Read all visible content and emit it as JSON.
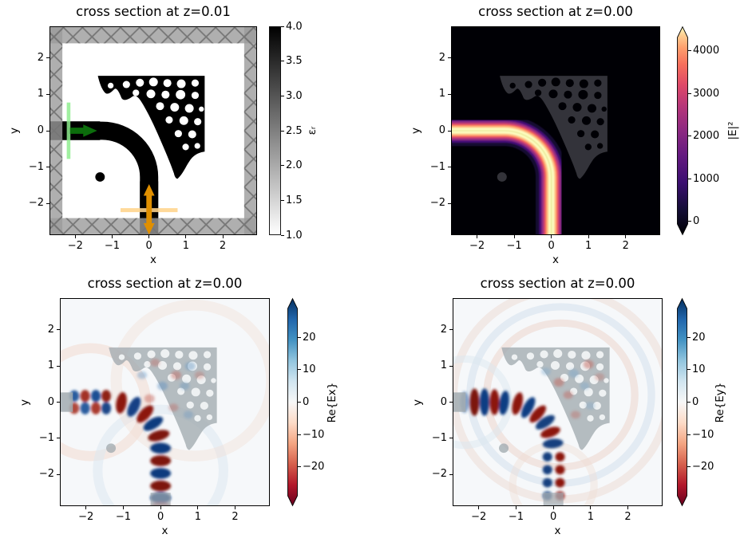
{
  "figure": {
    "background": "#ffffff",
    "description": "2x2 grid of electromagnetic simulation cross-section heatmaps of a topology-optimized waveguide bend"
  },
  "colors": {
    "structure_black": "#000000",
    "pml_gray": "#9b9b9b",
    "source_line_green": "#90ee90",
    "source_arrow_green": "#0c6d0c",
    "monitor_line_orange": "#ffd48c",
    "monitor_arrow_orange": "#e08f00",
    "magma_low": "#000004",
    "magma_high": "#fcfdbf",
    "rdbu_low": "#67001f",
    "rdbu_high": "#053061"
  },
  "chart_data": [
    {
      "id": "permittivity",
      "type": "heatmap",
      "title": "cross section at z=0.01",
      "xlabel": "x",
      "ylabel": "y",
      "xlim": [
        -2.7,
        2.9
      ],
      "ylim": [
        -2.87,
        2.87
      ],
      "xticks": {
        "values": [
          -2,
          -1,
          0,
          1,
          2
        ],
        "labels": [
          "−2",
          "−1",
          "0",
          "1",
          "2"
        ]
      },
      "yticks": {
        "values": [
          2,
          1,
          0,
          -1,
          -2
        ],
        "labels": [
          "2",
          "1",
          "0",
          "−1",
          "−2"
        ]
      },
      "colorbar": {
        "label": "εᵣ",
        "cmap": "binary (white to black)",
        "vmin": 1.0,
        "vmax": 4.0,
        "extend": "neither",
        "ticks": {
          "values": [
            4.0,
            3.5,
            3.0,
            2.5,
            2.0,
            1.5,
            1.0
          ],
          "labels": [
            "4.0",
            "3.5",
            "3.0",
            "2.5",
            "2.0",
            "1.5",
            "1.0"
          ]
        }
      },
      "content": "Relative permittivity: white background (εᵣ=1), black topology-optimized 90° waveguide bend with circular holes (εᵣ=4), hatched gray absorbing boundary (PML) frame",
      "annotations": [
        {
          "name": "mode-source",
          "color": "green",
          "position": "vertical line at x≈−2.2 with arrow pointing +x at y=0"
        },
        {
          "name": "mode-monitor",
          "color": "orange",
          "position": "horizontal line at y≈−2.2 with double-headed arrow along y at x=0"
        }
      ]
    },
    {
      "id": "intensity",
      "type": "heatmap",
      "title": "cross section at z=0.00",
      "xlabel": "x",
      "ylabel": "y",
      "xlim": [
        -2.7,
        2.9
      ],
      "ylim": [
        -2.87,
        2.87
      ],
      "xticks": {
        "values": [
          -2,
          -1,
          0,
          1,
          2
        ],
        "labels": [
          "−2",
          "−1",
          "0",
          "1",
          "2"
        ]
      },
      "yticks": {
        "values": [
          2,
          1,
          0,
          -1,
          -2
        ],
        "labels": [
          "2",
          "1",
          "0",
          "−1",
          "−2"
        ]
      },
      "colorbar": {
        "label": "|E|²",
        "cmap": "magma",
        "vmin": 0,
        "vmax": 4000,
        "extend": "both",
        "ticks": {
          "values": [
            4000,
            3000,
            2000,
            1000,
            0
          ],
          "labels": [
            "4000",
            "3000",
            "2000",
            "1000",
            "0"
          ]
        }
      },
      "content": "Electric field intensity |E|²: bright beam entering at left port (y=0), following the 90° bend and exiting at the bottom port (x=0), on black background with faint gray structure overlay"
    },
    {
      "id": "re-ex",
      "type": "heatmap",
      "title": "cross section at z=0.00",
      "xlabel": "x",
      "ylabel": "y",
      "xlim": [
        -2.7,
        2.9
      ],
      "ylim": [
        -2.87,
        2.87
      ],
      "xticks": {
        "values": [
          -2,
          -1,
          0,
          1,
          2
        ],
        "labels": [
          "−2",
          "−1",
          "0",
          "1",
          "2"
        ]
      },
      "yticks": {
        "values": [
          2,
          1,
          0,
          -1,
          -2
        ],
        "labels": [
          "2",
          "1",
          "0",
          "−1",
          "−2"
        ]
      },
      "colorbar": {
        "label": "Re{Ex}",
        "cmap": "RdBu",
        "vmin": -28,
        "vmax": 28,
        "extend": "both",
        "ticks": {
          "values": [
            20,
            10,
            0,
            -10,
            -20
          ],
          "labels": [
            "20",
            "10",
            "0",
            "−10",
            "−20"
          ]
        }
      },
      "content": "Re{Ex}: alternating red/blue field lobes along the bend, strongest horizontal bars on the vertical output arm, translucent gray structure overlay"
    },
    {
      "id": "re-ey",
      "type": "heatmap",
      "title": "cross section at z=0.00",
      "xlabel": "x",
      "ylabel": "y",
      "xlim": [
        -2.7,
        2.9
      ],
      "ylim": [
        -2.87,
        2.87
      ],
      "xticks": {
        "values": [
          -2,
          -1,
          0,
          1,
          2
        ],
        "labels": [
          "−2",
          "−1",
          "0",
          "1",
          "2"
        ]
      },
      "yticks": {
        "values": [
          2,
          1,
          0,
          -1,
          -2
        ],
        "labels": [
          "2",
          "1",
          "0",
          "−1",
          "−2"
        ]
      },
      "colorbar": {
        "label": "Re{Ey}",
        "cmap": "RdBu",
        "vmin": -28,
        "vmax": 28,
        "extend": "both",
        "ticks": {
          "values": [
            20,
            10,
            0,
            -10,
            -20
          ],
          "labels": [
            "20",
            "10",
            "0",
            "−10",
            "−20"
          ]
        }
      },
      "content": "Re{Ey}: strong alternating vertical red/blue bars on the horizontal input arm continuing around the bend, weaker paired lobes on the output arm, faint radiating ripples"
    }
  ]
}
